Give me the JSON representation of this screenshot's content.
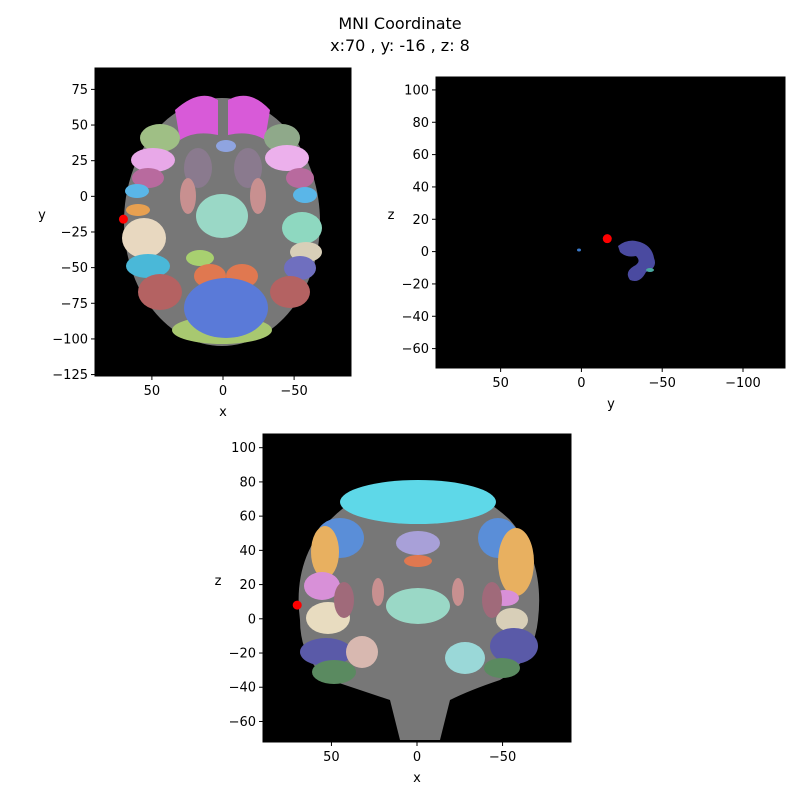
{
  "figure": {
    "title": "MNI Coordinate",
    "subtitle": "x:70 , y: -16 , z: 8",
    "point_color": "#ff0000",
    "background": "#000000"
  },
  "chart_data": [
    {
      "type": "scatter",
      "view": "axial",
      "xlabel": "x",
      "ylabel": "y",
      "xlim": [
        90,
        -90
      ],
      "ylim": [
        -126,
        90
      ],
      "xticks": [
        50,
        0,
        -50
      ],
      "xtick_labels": [
        "50",
        "0",
        "−50"
      ],
      "yticks": [
        75,
        50,
        25,
        0,
        -25,
        -50,
        -75,
        -100,
        -125
      ],
      "ytick_labels": [
        "75",
        "50",
        "25",
        "0",
        "−25",
        "−50",
        "−75",
        "−100",
        "−125"
      ],
      "points": [
        {
          "x": 70,
          "y": -16
        }
      ]
    },
    {
      "type": "scatter",
      "view": "sagittal",
      "xlabel": "y",
      "ylabel": "z",
      "xlim": [
        90,
        -126
      ],
      "ylim": [
        -72,
        108
      ],
      "xticks": [
        50,
        0,
        -50,
        -100
      ],
      "xtick_labels": [
        "50",
        "0",
        "−50",
        "−100"
      ],
      "yticks": [
        100,
        80,
        60,
        40,
        20,
        0,
        -20,
        -40,
        -60
      ],
      "ytick_labels": [
        "100",
        "80",
        "60",
        "40",
        "20",
        "0",
        "−20",
        "−40",
        "−60"
      ],
      "points": [
        {
          "x": -16,
          "y": 8
        }
      ]
    },
    {
      "type": "scatter",
      "view": "coronal",
      "xlabel": "x",
      "ylabel": "z",
      "xlim": [
        90,
        -90
      ],
      "ylim": [
        -72,
        108
      ],
      "xticks": [
        50,
        0,
        -50
      ],
      "xtick_labels": [
        "50",
        "0",
        "−50"
      ],
      "yticks": [
        100,
        80,
        60,
        40,
        20,
        0,
        -20,
        -40,
        -60
      ],
      "ytick_labels": [
        "100",
        "80",
        "60",
        "40",
        "20",
        "0",
        "−20",
        "−40",
        "−60"
      ],
      "points": [
        {
          "x": 70,
          "y": 8
        }
      ]
    }
  ]
}
